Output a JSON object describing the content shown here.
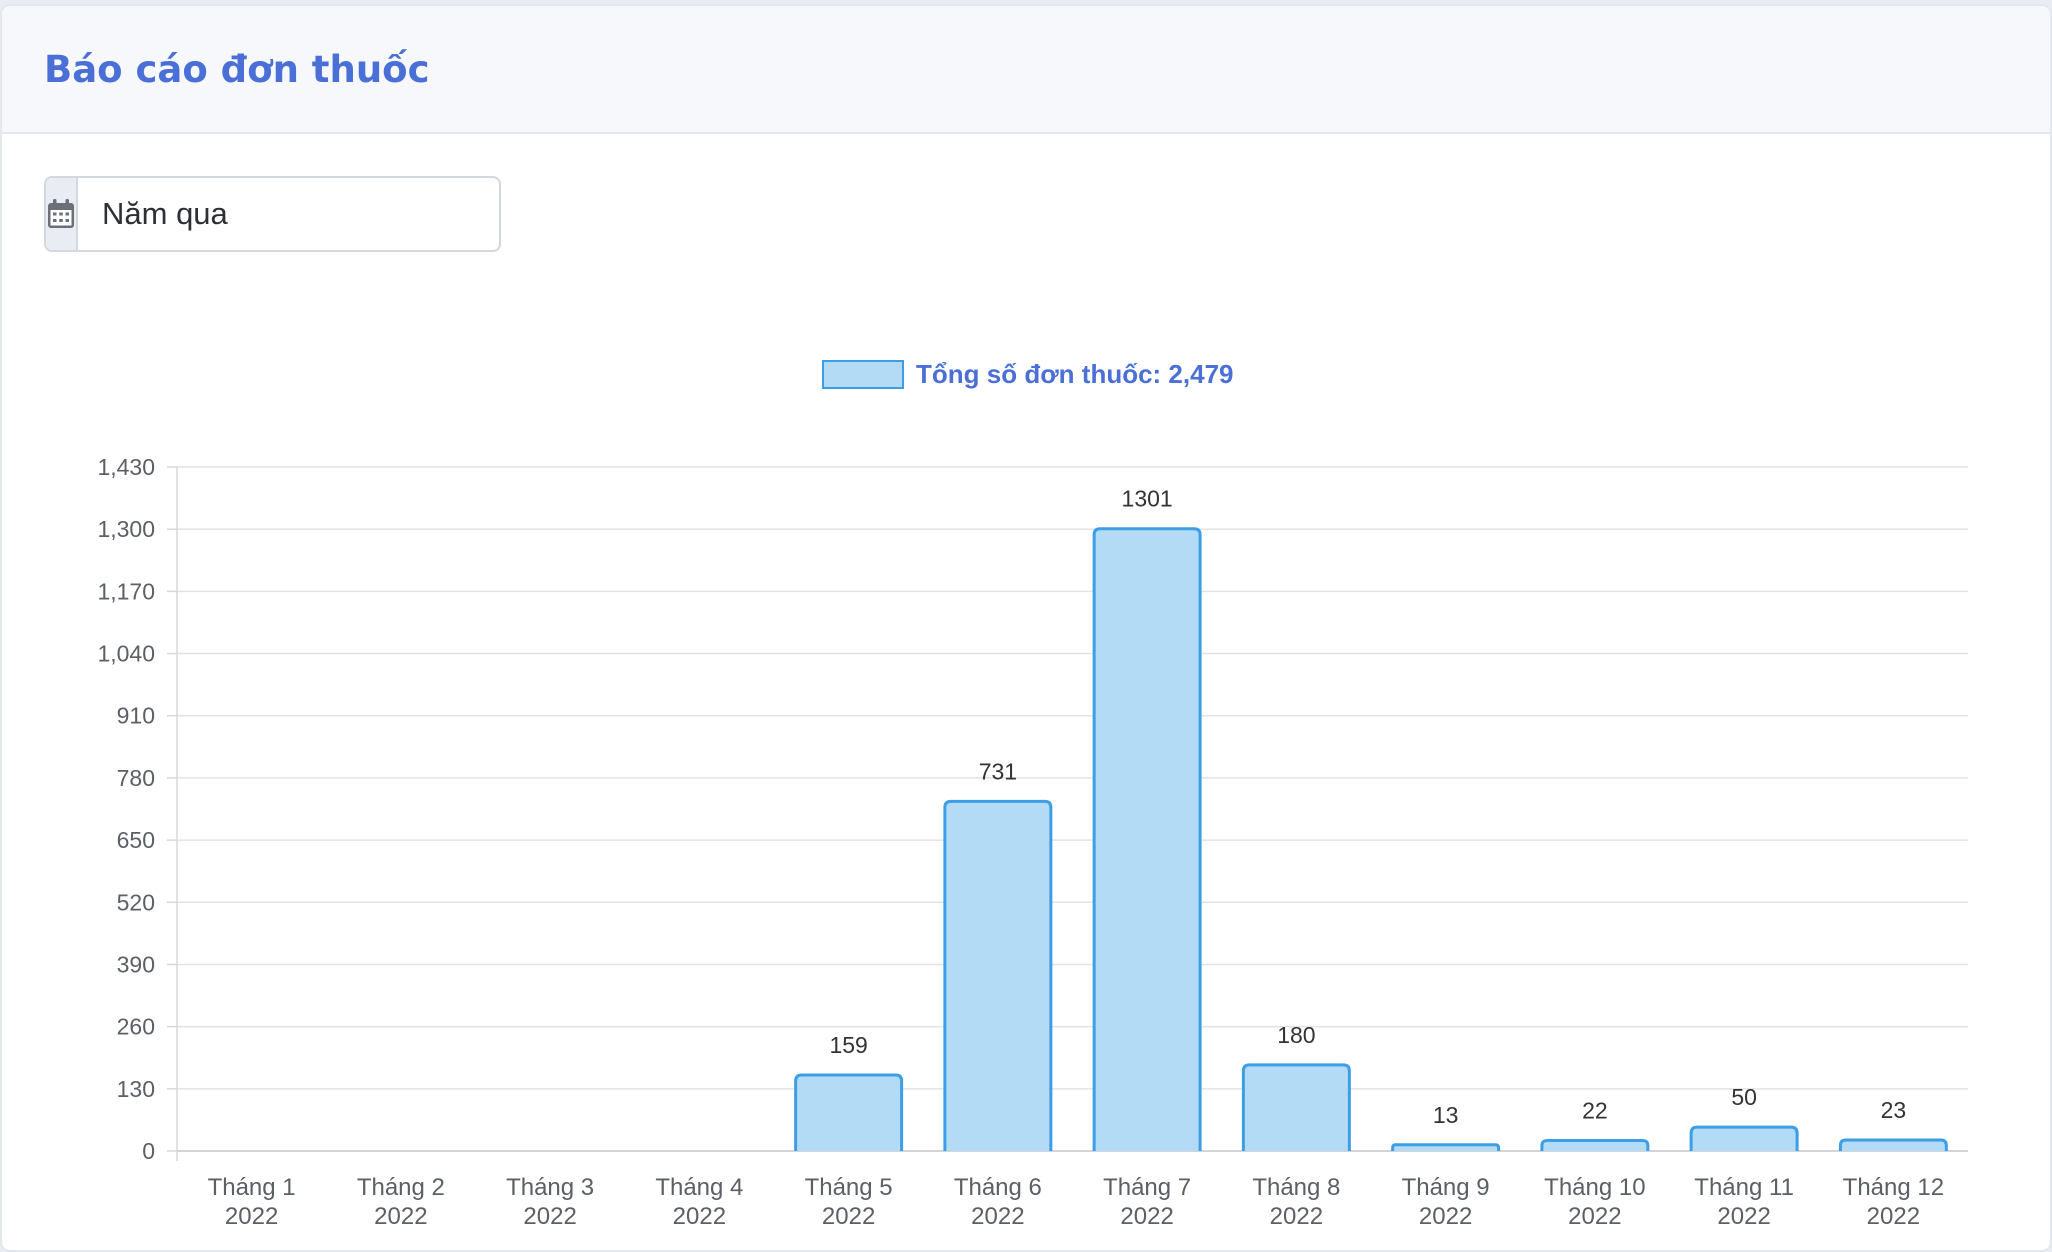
{
  "header": {
    "title": "Báo cáo đơn thuốc"
  },
  "date_range": {
    "value": "Năm qua",
    "icon": "calendar-icon"
  },
  "colors": {
    "bar_fill": "#b3dbf6",
    "bar_border": "#3c9ee5",
    "legend_text": "#4a6fd7",
    "title": "#4a6fd7"
  },
  "chart_data": {
    "type": "bar",
    "legend": {
      "label": "Tổng số đơn thuốc: 2,479",
      "placement": "top-center"
    },
    "categories": [
      [
        "Tháng 1",
        "2022"
      ],
      [
        "Tháng 2",
        "2022"
      ],
      [
        "Tháng 3",
        "2022"
      ],
      [
        "Tháng 4",
        "2022"
      ],
      [
        "Tháng 5",
        "2022"
      ],
      [
        "Tháng 6",
        "2022"
      ],
      [
        "Tháng 7",
        "2022"
      ],
      [
        "Tháng 8",
        "2022"
      ],
      [
        "Tháng 9",
        "2022"
      ],
      [
        "Tháng 10",
        "2022"
      ],
      [
        "Tháng 11",
        "2022"
      ],
      [
        "Tháng 12",
        "2022"
      ]
    ],
    "values": [
      0,
      0,
      0,
      0,
      159,
      731,
      1301,
      180,
      13,
      22,
      50,
      23
    ],
    "data_labels": [
      "",
      "",
      "",
      "",
      "159",
      "731",
      "1301",
      "180",
      "13",
      "22",
      "50",
      "23"
    ],
    "yticks": [
      0,
      130,
      260,
      390,
      520,
      650,
      780,
      910,
      1040,
      1170,
      1300,
      1430
    ],
    "ytick_labels": [
      "0",
      "130",
      "260",
      "390",
      "520",
      "650",
      "780",
      "910",
      "1,040",
      "1,170",
      "1,300",
      "1,430"
    ],
    "ylim": [
      0,
      1430
    ],
    "grid": true
  }
}
